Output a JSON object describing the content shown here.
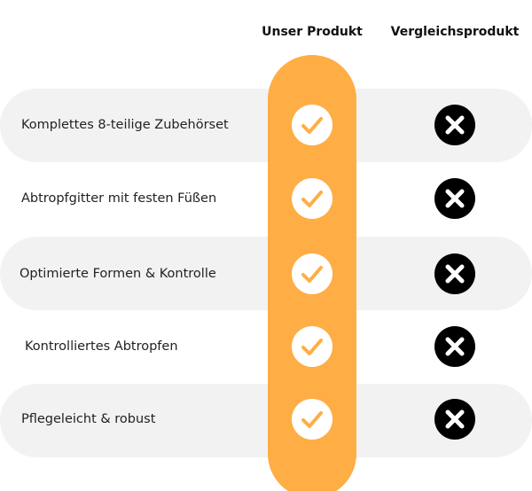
{
  "headers": {
    "ours": "Unser Produkt",
    "theirs": "Vergleichsprodukt"
  },
  "colors": {
    "accent": "#ffad45",
    "band": "#f2f2f2",
    "cross_bg": "#000000"
  },
  "rows": [
    {
      "label": "Komplettes 8-teilige Zubehörset",
      "ours": "check-icon",
      "theirs": "cross-icon"
    },
    {
      "label": "Abtropfgitter mit festen Füßen",
      "ours": "check-icon",
      "theirs": "cross-icon"
    },
    {
      "label": "Optimierte Formen & Kontrolle",
      "ours": "check-icon",
      "theirs": "cross-icon"
    },
    {
      "label": "Kontrolliertes Abtropfen",
      "ours": "check-icon",
      "theirs": "cross-icon"
    },
    {
      "label": "Pflegeleicht & robust",
      "ours": "check-icon",
      "theirs": "cross-icon"
    }
  ]
}
